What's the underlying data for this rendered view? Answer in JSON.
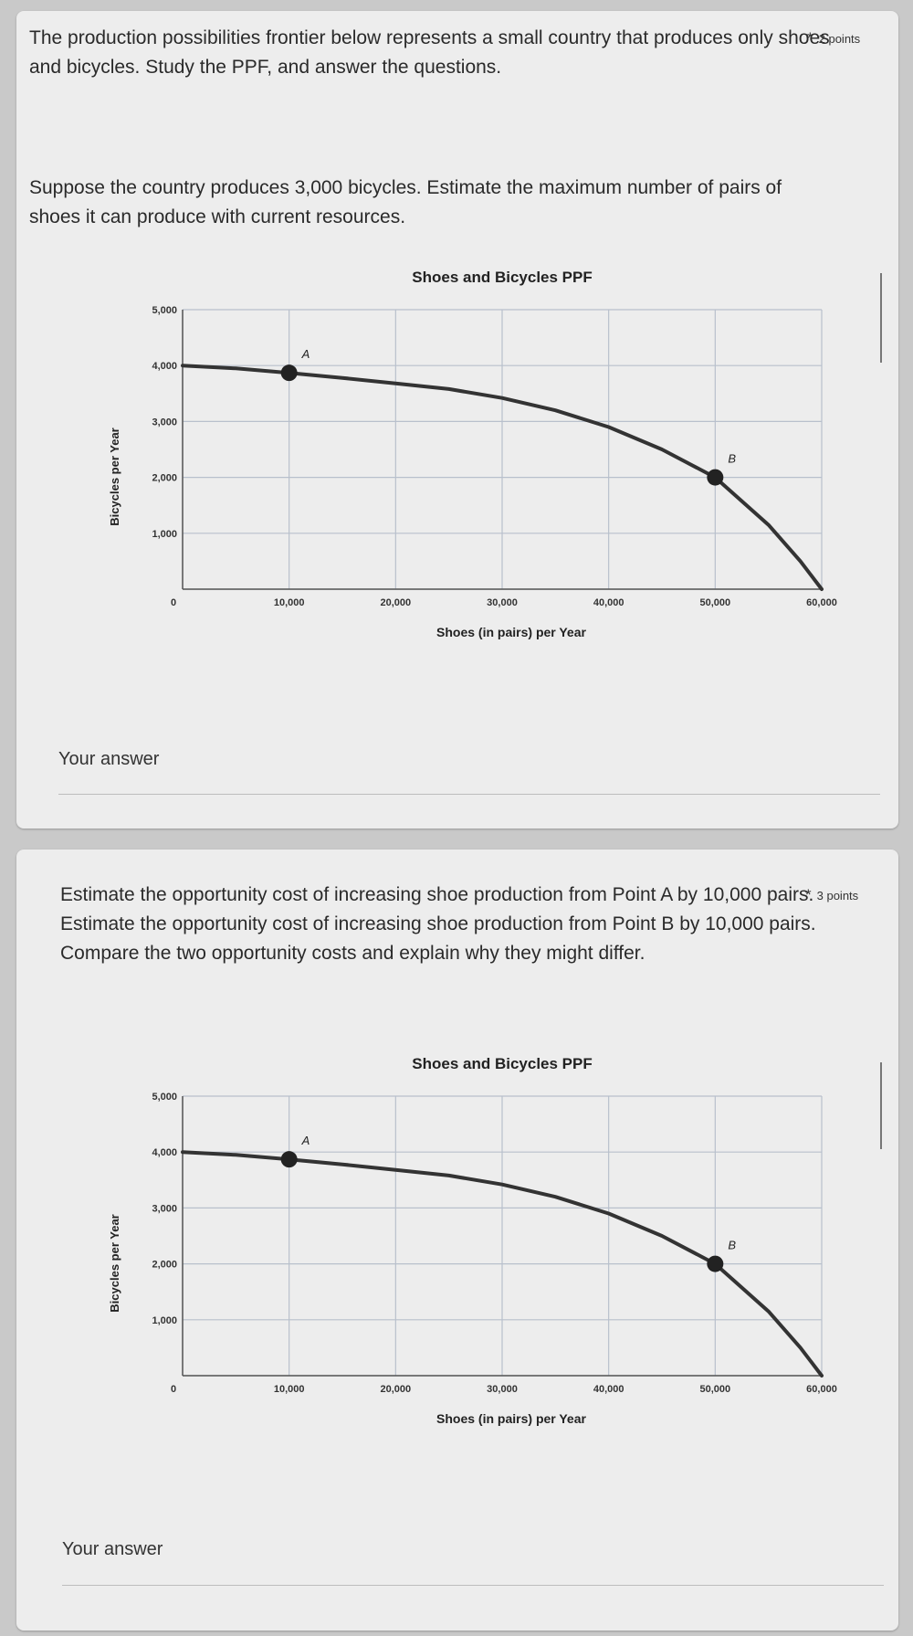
{
  "q1": {
    "intro": "The production possibilities frontier below represents a small country that produces only shoes and bicycles. Study the PPF, and answer the questions.",
    "question": "Suppose the country produces 3,000 bicycles. Estimate the maximum number of pairs of shoes it can produce with current resources.",
    "required_mark": "*",
    "points": "2 points",
    "answer_label": "Your answer"
  },
  "q2": {
    "question": "Estimate the opportunity cost of increasing shoe production from Point A by 10,000 pairs. Estimate the opportunity cost of increasing shoe production from Point B by 10,000 pairs. Compare the two opportunity costs and explain why they might differ.",
    "required_mark": "*",
    "points": "3 points",
    "answer_label": "Your answer"
  },
  "colors": {
    "page_bg": "#c9c9c9",
    "card_bg": "#ededed",
    "grid": "#b8c0cc",
    "curve": "#333333",
    "point": "#222222"
  },
  "chart_data": [
    {
      "type": "line",
      "title": "Shoes and Bicycles PPF",
      "xlabel": "Shoes (in pairs) per Year",
      "ylabel": "Bicycles per Year",
      "xlim": [
        0,
        60000
      ],
      "ylim": [
        0,
        5000
      ],
      "x_ticks": [
        "0",
        "10,000",
        "20,000",
        "30,000",
        "40,000",
        "50,000",
        "60,000"
      ],
      "y_ticks": [
        "5,000",
        "4,000",
        "3,000",
        "2,000",
        "1,000"
      ],
      "grid": true,
      "series": [
        {
          "x": [
            0,
            5000,
            10000,
            15000,
            20000,
            25000,
            30000,
            35000,
            40000,
            45000,
            50000,
            55000,
            58000,
            60000
          ],
          "y": [
            4000,
            3950,
            3870,
            3780,
            3680,
            3580,
            3420,
            3200,
            2900,
            2500,
            2000,
            1150,
            500,
            0
          ]
        }
      ],
      "points": [
        {
          "label": "A",
          "x": 10000,
          "y": 3870
        },
        {
          "label": "B",
          "x": 50000,
          "y": 2000
        }
      ]
    },
    {
      "type": "line",
      "title": "Shoes and Bicycles PPF",
      "xlabel": "Shoes (in pairs) per Year",
      "ylabel": "Bicycles per Year",
      "xlim": [
        0,
        60000
      ],
      "ylim": [
        0,
        5000
      ],
      "x_ticks": [
        "0",
        "10,000",
        "20,000",
        "30,000",
        "40,000",
        "50,000",
        "60,000"
      ],
      "y_ticks": [
        "5,000",
        "4,000",
        "3,000",
        "2,000",
        "1,000"
      ],
      "grid": true,
      "series": [
        {
          "x": [
            0,
            5000,
            10000,
            15000,
            20000,
            25000,
            30000,
            35000,
            40000,
            45000,
            50000,
            55000,
            58000,
            60000
          ],
          "y": [
            4000,
            3950,
            3870,
            3780,
            3680,
            3580,
            3420,
            3200,
            2900,
            2500,
            2000,
            1150,
            500,
            0
          ]
        }
      ],
      "points": [
        {
          "label": "A",
          "x": 10000,
          "y": 3870
        },
        {
          "label": "B",
          "x": 50000,
          "y": 2000
        }
      ]
    }
  ]
}
